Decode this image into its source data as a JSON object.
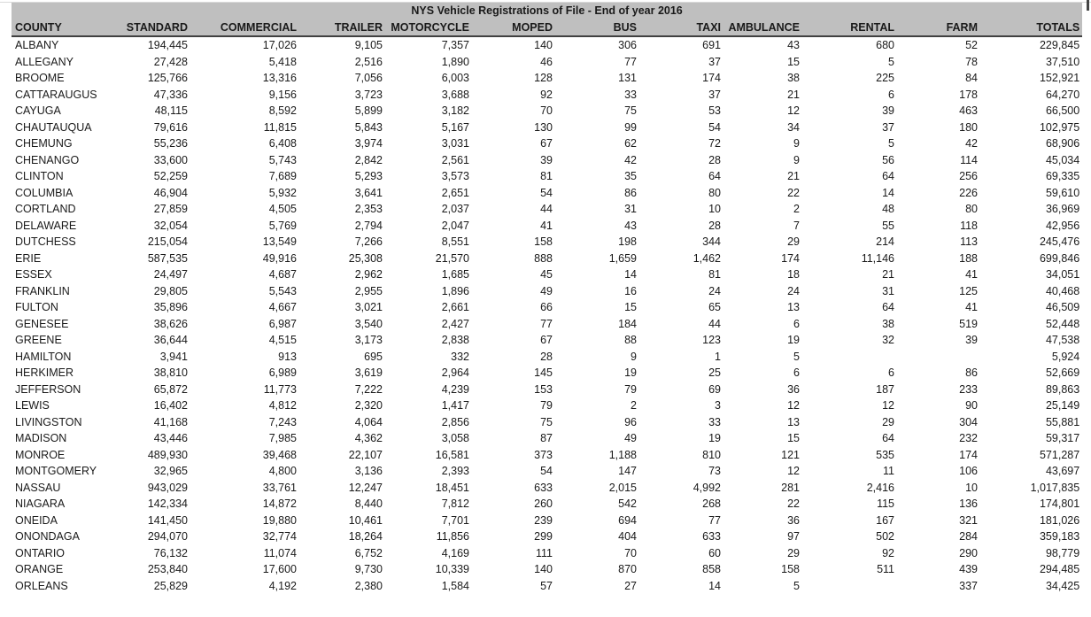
{
  "title": "NYS Vehicle Registrations of File - End of year 2016",
  "colors": {
    "header_bg": "#bfbfbf",
    "header_rule": "#404040",
    "top_rule": "#d9d9d9",
    "text": "#1a1a1a"
  },
  "table": {
    "columns": [
      "COUNTY",
      "STANDARD",
      "COMMERCIAL",
      "TRAILER",
      "MOTORCYCLE",
      "MOPED",
      "BUS",
      "TAXI",
      "AMBULANCE",
      "RENTAL",
      "FARM",
      "TOTALS"
    ],
    "rows": [
      [
        "ALBANY",
        "194,445",
        "17,026",
        "9,105",
        "7,357",
        "140",
        "306",
        "691",
        "43",
        "680",
        "52",
        "229,845"
      ],
      [
        "ALLEGANY",
        "27,428",
        "5,418",
        "2,516",
        "1,890",
        "46",
        "77",
        "37",
        "15",
        "5",
        "78",
        "37,510"
      ],
      [
        "BROOME",
        "125,766",
        "13,316",
        "7,056",
        "6,003",
        "128",
        "131",
        "174",
        "38",
        "225",
        "84",
        "152,921"
      ],
      [
        "CATTARAUGUS",
        "47,336",
        "9,156",
        "3,723",
        "3,688",
        "92",
        "33",
        "37",
        "21",
        "6",
        "178",
        "64,270"
      ],
      [
        "CAYUGA",
        "48,115",
        "8,592",
        "5,899",
        "3,182",
        "70",
        "75",
        "53",
        "12",
        "39",
        "463",
        "66,500"
      ],
      [
        "CHAUTAUQUA",
        "79,616",
        "11,815",
        "5,843",
        "5,167",
        "130",
        "99",
        "54",
        "34",
        "37",
        "180",
        "102,975"
      ],
      [
        "CHEMUNG",
        "55,236",
        "6,408",
        "3,974",
        "3,031",
        "67",
        "62",
        "72",
        "9",
        "5",
        "42",
        "68,906"
      ],
      [
        "CHENANGO",
        "33,600",
        "5,743",
        "2,842",
        "2,561",
        "39",
        "42",
        "28",
        "9",
        "56",
        "114",
        "45,034"
      ],
      [
        "CLINTON",
        "52,259",
        "7,689",
        "5,293",
        "3,573",
        "81",
        "35",
        "64",
        "21",
        "64",
        "256",
        "69,335"
      ],
      [
        "COLUMBIA",
        "46,904",
        "5,932",
        "3,641",
        "2,651",
        "54",
        "86",
        "80",
        "22",
        "14",
        "226",
        "59,610"
      ],
      [
        "CORTLAND",
        "27,859",
        "4,505",
        "2,353",
        "2,037",
        "44",
        "31",
        "10",
        "2",
        "48",
        "80",
        "36,969"
      ],
      [
        "DELAWARE",
        "32,054",
        "5,769",
        "2,794",
        "2,047",
        "41",
        "43",
        "28",
        "7",
        "55",
        "118",
        "42,956"
      ],
      [
        "DUTCHESS",
        "215,054",
        "13,549",
        "7,266",
        "8,551",
        "158",
        "198",
        "344",
        "29",
        "214",
        "113",
        "245,476"
      ],
      [
        "ERIE",
        "587,535",
        "49,916",
        "25,308",
        "21,570",
        "888",
        "1,659",
        "1,462",
        "174",
        "11,146",
        "188",
        "699,846"
      ],
      [
        "ESSEX",
        "24,497",
        "4,687",
        "2,962",
        "1,685",
        "45",
        "14",
        "81",
        "18",
        "21",
        "41",
        "34,051"
      ],
      [
        "FRANKLIN",
        "29,805",
        "5,543",
        "2,955",
        "1,896",
        "49",
        "16",
        "24",
        "24",
        "31",
        "125",
        "40,468"
      ],
      [
        "FULTON",
        "35,896",
        "4,667",
        "3,021",
        "2,661",
        "66",
        "15",
        "65",
        "13",
        "64",
        "41",
        "46,509"
      ],
      [
        "GENESEE",
        "38,626",
        "6,987",
        "3,540",
        "2,427",
        "77",
        "184",
        "44",
        "6",
        "38",
        "519",
        "52,448"
      ],
      [
        "GREENE",
        "36,644",
        "4,515",
        "3,173",
        "2,838",
        "67",
        "88",
        "123",
        "19",
        "32",
        "39",
        "47,538"
      ],
      [
        "HAMILTON",
        "3,941",
        "913",
        "695",
        "332",
        "28",
        "9",
        "1",
        "5",
        "",
        "",
        "5,924"
      ],
      [
        "HERKIMER",
        "38,810",
        "6,989",
        "3,619",
        "2,964",
        "145",
        "19",
        "25",
        "6",
        "6",
        "86",
        "52,669"
      ],
      [
        "JEFFERSON",
        "65,872",
        "11,773",
        "7,222",
        "4,239",
        "153",
        "79",
        "69",
        "36",
        "187",
        "233",
        "89,863"
      ],
      [
        "LEWIS",
        "16,402",
        "4,812",
        "2,320",
        "1,417",
        "79",
        "2",
        "3",
        "12",
        "12",
        "90",
        "25,149"
      ],
      [
        "LIVINGSTON",
        "41,168",
        "7,243",
        "4,064",
        "2,856",
        "75",
        "96",
        "33",
        "13",
        "29",
        "304",
        "55,881"
      ],
      [
        "MADISON",
        "43,446",
        "7,985",
        "4,362",
        "3,058",
        "87",
        "49",
        "19",
        "15",
        "64",
        "232",
        "59,317"
      ],
      [
        "MONROE",
        "489,930",
        "39,468",
        "22,107",
        "16,581",
        "373",
        "1,188",
        "810",
        "121",
        "535",
        "174",
        "571,287"
      ],
      [
        "MONTGOMERY",
        "32,965",
        "4,800",
        "3,136",
        "2,393",
        "54",
        "147",
        "73",
        "12",
        "11",
        "106",
        "43,697"
      ],
      [
        "NASSAU",
        "943,029",
        "33,761",
        "12,247",
        "18,451",
        "633",
        "2,015",
        "4,992",
        "281",
        "2,416",
        "10",
        "1,017,835"
      ],
      [
        "NIAGARA",
        "142,334",
        "14,872",
        "8,440",
        "7,812",
        "260",
        "542",
        "268",
        "22",
        "115",
        "136",
        "174,801"
      ],
      [
        "ONEIDA",
        "141,450",
        "19,880",
        "10,461",
        "7,701",
        "239",
        "694",
        "77",
        "36",
        "167",
        "321",
        "181,026"
      ],
      [
        "ONONDAGA",
        "294,070",
        "32,774",
        "18,264",
        "11,856",
        "299",
        "404",
        "633",
        "97",
        "502",
        "284",
        "359,183"
      ],
      [
        "ONTARIO",
        "76,132",
        "11,074",
        "6,752",
        "4,169",
        "111",
        "70",
        "60",
        "29",
        "92",
        "290",
        "98,779"
      ],
      [
        "ORANGE",
        "253,840",
        "17,600",
        "9,730",
        "10,339",
        "140",
        "870",
        "858",
        "158",
        "511",
        "439",
        "294,485"
      ],
      [
        "ORLEANS",
        "25,829",
        "4,192",
        "2,380",
        "1,584",
        "57",
        "27",
        "14",
        "5",
        "",
        "337",
        "34,425"
      ]
    ]
  }
}
